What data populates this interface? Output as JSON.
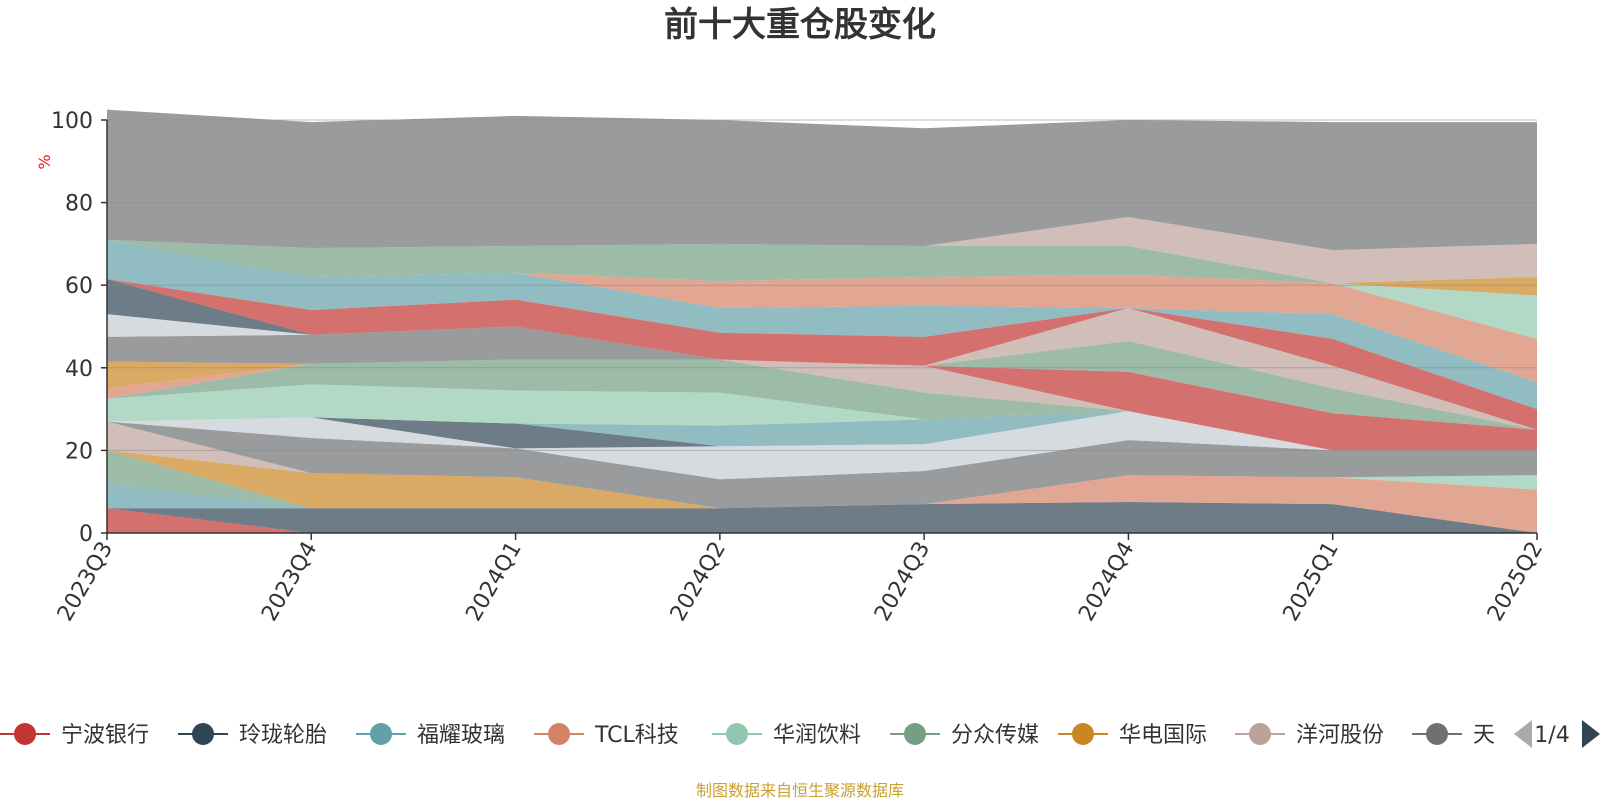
{
  "chart_data": {
    "type": "area",
    "stacked": true,
    "title": "前十大重仓股变化",
    "ylabel": "%",
    "ylim": [
      0,
      100
    ],
    "yticks": [
      0,
      20,
      40,
      60,
      80,
      100
    ],
    "categories": [
      "2023Q3",
      "2023Q4",
      "2024Q1",
      "2024Q2",
      "2024Q3",
      "2024Q4",
      "2025Q1",
      "2025Q2"
    ],
    "grid": true,
    "legend_position": "bottom",
    "legend_page": "1/4",
    "series": [
      {
        "name": "宁波银行",
        "color": "#c23531",
        "values": [
          6,
          0,
          0,
          0,
          0,
          0,
          0,
          0
        ]
      },
      {
        "name": "玲珑轮胎",
        "color": "#2f4554",
        "values": [
          0,
          6,
          6,
          6,
          7,
          7.5,
          7,
          0
        ]
      },
      {
        "name": "福耀玻璃",
        "color": "#61a0a8",
        "values": [
          6,
          0,
          0,
          0,
          0,
          0,
          0,
          0
        ]
      },
      {
        "name": "TCL科技",
        "color": "#d48265",
        "values": [
          0,
          0,
          0,
          0,
          0,
          6.5,
          6.5,
          10.5
        ]
      },
      {
        "name": "华润饮料",
        "color": "#91c7ae",
        "values": [
          0,
          0,
          0,
          0,
          0,
          0,
          0,
          3.5
        ]
      },
      {
        "name": "分众传媒",
        "color": "#749f83",
        "values": [
          8,
          0,
          0,
          0,
          0,
          0,
          0,
          0
        ]
      },
      {
        "name": "华电国际",
        "color": "#ca8622",
        "values": [
          0,
          8.5,
          7.5,
          0,
          0,
          0,
          0,
          0
        ]
      },
      {
        "name": "洋河股份",
        "color": "#bda29a",
        "values": [
          7,
          0,
          0,
          0,
          0,
          0,
          0,
          0
        ]
      },
      {
        "name": "天",
        "color": "#6e7074",
        "values": [
          0,
          8.5,
          7,
          7,
          8,
          8.5,
          6.5,
          6
        ]
      },
      {
        "name": "",
        "color": "#c4ccd3",
        "values": [
          0,
          5,
          0,
          8,
          6.5,
          7,
          0,
          0
        ]
      },
      {
        "name": "",
        "color": "#2f4554",
        "values": [
          0,
          0,
          6,
          0,
          0,
          0,
          0,
          0
        ]
      },
      {
        "name": "",
        "color": "#61a0a8",
        "values": [
          0,
          0,
          0,
          5,
          6,
          0,
          0,
          0
        ]
      },
      {
        "name": "",
        "color": "#91c7ae",
        "values": [
          5.5,
          8,
          8,
          8,
          0,
          0,
          0,
          0
        ]
      },
      {
        "name": "",
        "color": "#749f83",
        "values": [
          0,
          5,
          7.5,
          8,
          6.5,
          0,
          0,
          0
        ]
      },
      {
        "name": "",
        "color": "#bda29a",
        "values": [
          0,
          0,
          0,
          0,
          6.5,
          0,
          0,
          0
        ]
      },
      {
        "name": "",
        "color": "#c23531",
        "values": [
          0,
          0,
          0,
          0,
          0,
          9.5,
          9,
          5
        ]
      },
      {
        "name": "",
        "color": "#749f83",
        "values": [
          0,
          0,
          0,
          0,
          0,
          7.5,
          6,
          0
        ]
      },
      {
        "name": "",
        "color": "#bda29a",
        "values": [
          0,
          0,
          0,
          0,
          0,
          8,
          5.5,
          0
        ]
      },
      {
        "name": "",
        "color": "#c23531",
        "values": [
          0,
          0,
          0,
          0,
          0,
          0,
          6.5,
          5
        ]
      },
      {
        "name": "",
        "color": "#61a0a8",
        "values": [
          0,
          0,
          0,
          0,
          0,
          0,
          6,
          6.5
        ]
      },
      {
        "name": "",
        "color": "#d48265",
        "values": [
          2.5,
          0,
          0,
          0,
          0,
          0,
          7.5,
          10.5
        ]
      },
      {
        "name": "",
        "color": "#91c7ae",
        "values": [
          0,
          0,
          0,
          0,
          0,
          0,
          0,
          10.5
        ]
      },
      {
        "name": "",
        "color": "#ca8622",
        "values": [
          6.5,
          0,
          0,
          0,
          0,
          0,
          0,
          4.5
        ]
      },
      {
        "name": "",
        "color": "#6e7074",
        "values": [
          6,
          7,
          8,
          0,
          0,
          0,
          0,
          0
        ]
      },
      {
        "name": "",
        "color": "#c4ccd3",
        "values": [
          5.5,
          0,
          0,
          0,
          0,
          0,
          0,
          0
        ]
      },
      {
        "name": "",
        "color": "#2f4554",
        "values": [
          8.5,
          0,
          0,
          0,
          0,
          0,
          0,
          0
        ]
      },
      {
        "name": "",
        "color": "#c23531",
        "values": [
          0,
          6,
          6.5,
          6.5,
          7,
          0,
          0,
          0
        ]
      },
      {
        "name": "",
        "color": "#61a0a8",
        "values": [
          9.5,
          8,
          6.5,
          6,
          7.5,
          0,
          0,
          0
        ]
      },
      {
        "name": "",
        "color": "#d48265",
        "values": [
          0,
          0,
          0,
          6.5,
          7,
          8,
          0,
          0
        ]
      },
      {
        "name": "",
        "color": "#749f83",
        "values": [
          0,
          7,
          6.5,
          9,
          7.5,
          7,
          0,
          0
        ]
      },
      {
        "name": "",
        "color": "#bda29a",
        "values": [
          0,
          0,
          0,
          0,
          0,
          7,
          8,
          8
        ]
      },
      {
        "name": "",
        "color": "#6e7074",
        "values": [
          31.5,
          30.5,
          31.5,
          30,
          28.5,
          23.5,
          31,
          29.5
        ]
      }
    ]
  },
  "footer": {
    "source": "制图数据来自恒生聚源数据库"
  },
  "colors": {
    "ylabel": "#e01f1f",
    "source": "#c9a12c",
    "axis": "#333333",
    "grid": "#cccccc"
  }
}
